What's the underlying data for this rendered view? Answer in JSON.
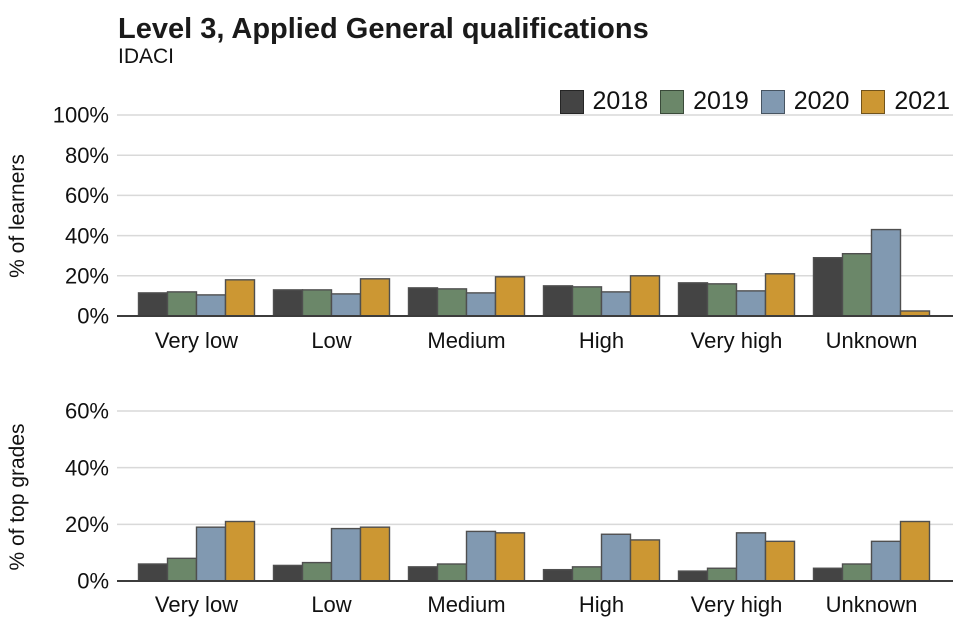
{
  "header": {
    "title": "Level 3, Applied General qualifications",
    "subtitle": "IDACI"
  },
  "legend": {
    "position": "top-right",
    "items": [
      {
        "label": "2018",
        "color": "#444444"
      },
      {
        "label": "2019",
        "color": "#6b8769"
      },
      {
        "label": "2020",
        "color": "#8199b1"
      },
      {
        "label": "2021",
        "color": "#cc9733"
      }
    ]
  },
  "chart_data": [
    {
      "type": "bar",
      "title": "Level 3, Applied General qualifications",
      "subtitle": "IDACI",
      "ylabel": "% of learners",
      "xlabel": "",
      "categories": [
        "Very low",
        "Low",
        "Medium",
        "High",
        "Very high",
        "Unknown"
      ],
      "series": [
        {
          "name": "2018",
          "color": "#444444",
          "values": [
            11.5,
            13,
            14,
            15,
            16.5,
            29
          ]
        },
        {
          "name": "2019",
          "color": "#6b8769",
          "values": [
            12,
            13,
            13.5,
            14.5,
            16,
            31
          ]
        },
        {
          "name": "2020",
          "color": "#8199b1",
          "values": [
            10.5,
            11,
            11.5,
            12,
            12.5,
            43
          ]
        },
        {
          "name": "2021",
          "color": "#cc9733",
          "values": [
            18,
            18.5,
            19.5,
            20,
            21,
            2.5
          ]
        }
      ],
      "ylim": [
        0,
        100
      ],
      "ytick_values": [
        0,
        20,
        40,
        60,
        80,
        100
      ],
      "ytick_labels": [
        "0%",
        "20%",
        "40%",
        "60%",
        "80%",
        "100%"
      ],
      "grid": true,
      "legend_position": "top-right"
    },
    {
      "type": "bar",
      "ylabel": "% of top grades",
      "xlabel": "",
      "categories": [
        "Very low",
        "Low",
        "Medium",
        "High",
        "Very high",
        "Unknown"
      ],
      "series": [
        {
          "name": "2018",
          "color": "#444444",
          "values": [
            6,
            5.5,
            5,
            4,
            3.5,
            4.5
          ]
        },
        {
          "name": "2019",
          "color": "#6b8769",
          "values": [
            8,
            6.5,
            6,
            5,
            4.5,
            6
          ]
        },
        {
          "name": "2020",
          "color": "#8199b1",
          "values": [
            19,
            18.5,
            17.5,
            16.5,
            17,
            14
          ]
        },
        {
          "name": "2021",
          "color": "#cc9733",
          "values": [
            21,
            19,
            17,
            14.5,
            14,
            21
          ]
        }
      ],
      "ylim": [
        0,
        60
      ],
      "ytick_values": [
        0,
        20,
        40,
        60
      ],
      "ytick_labels": [
        "0%",
        "20%",
        "40%",
        "60%"
      ],
      "grid": true,
      "legend_position": "none"
    }
  ],
  "style": {
    "gridline_color": "#d9d9d9",
    "baseline_color": "#3c3c3c",
    "bar_stroke_color": "#4f4f4f",
    "background": "#ffffff"
  }
}
